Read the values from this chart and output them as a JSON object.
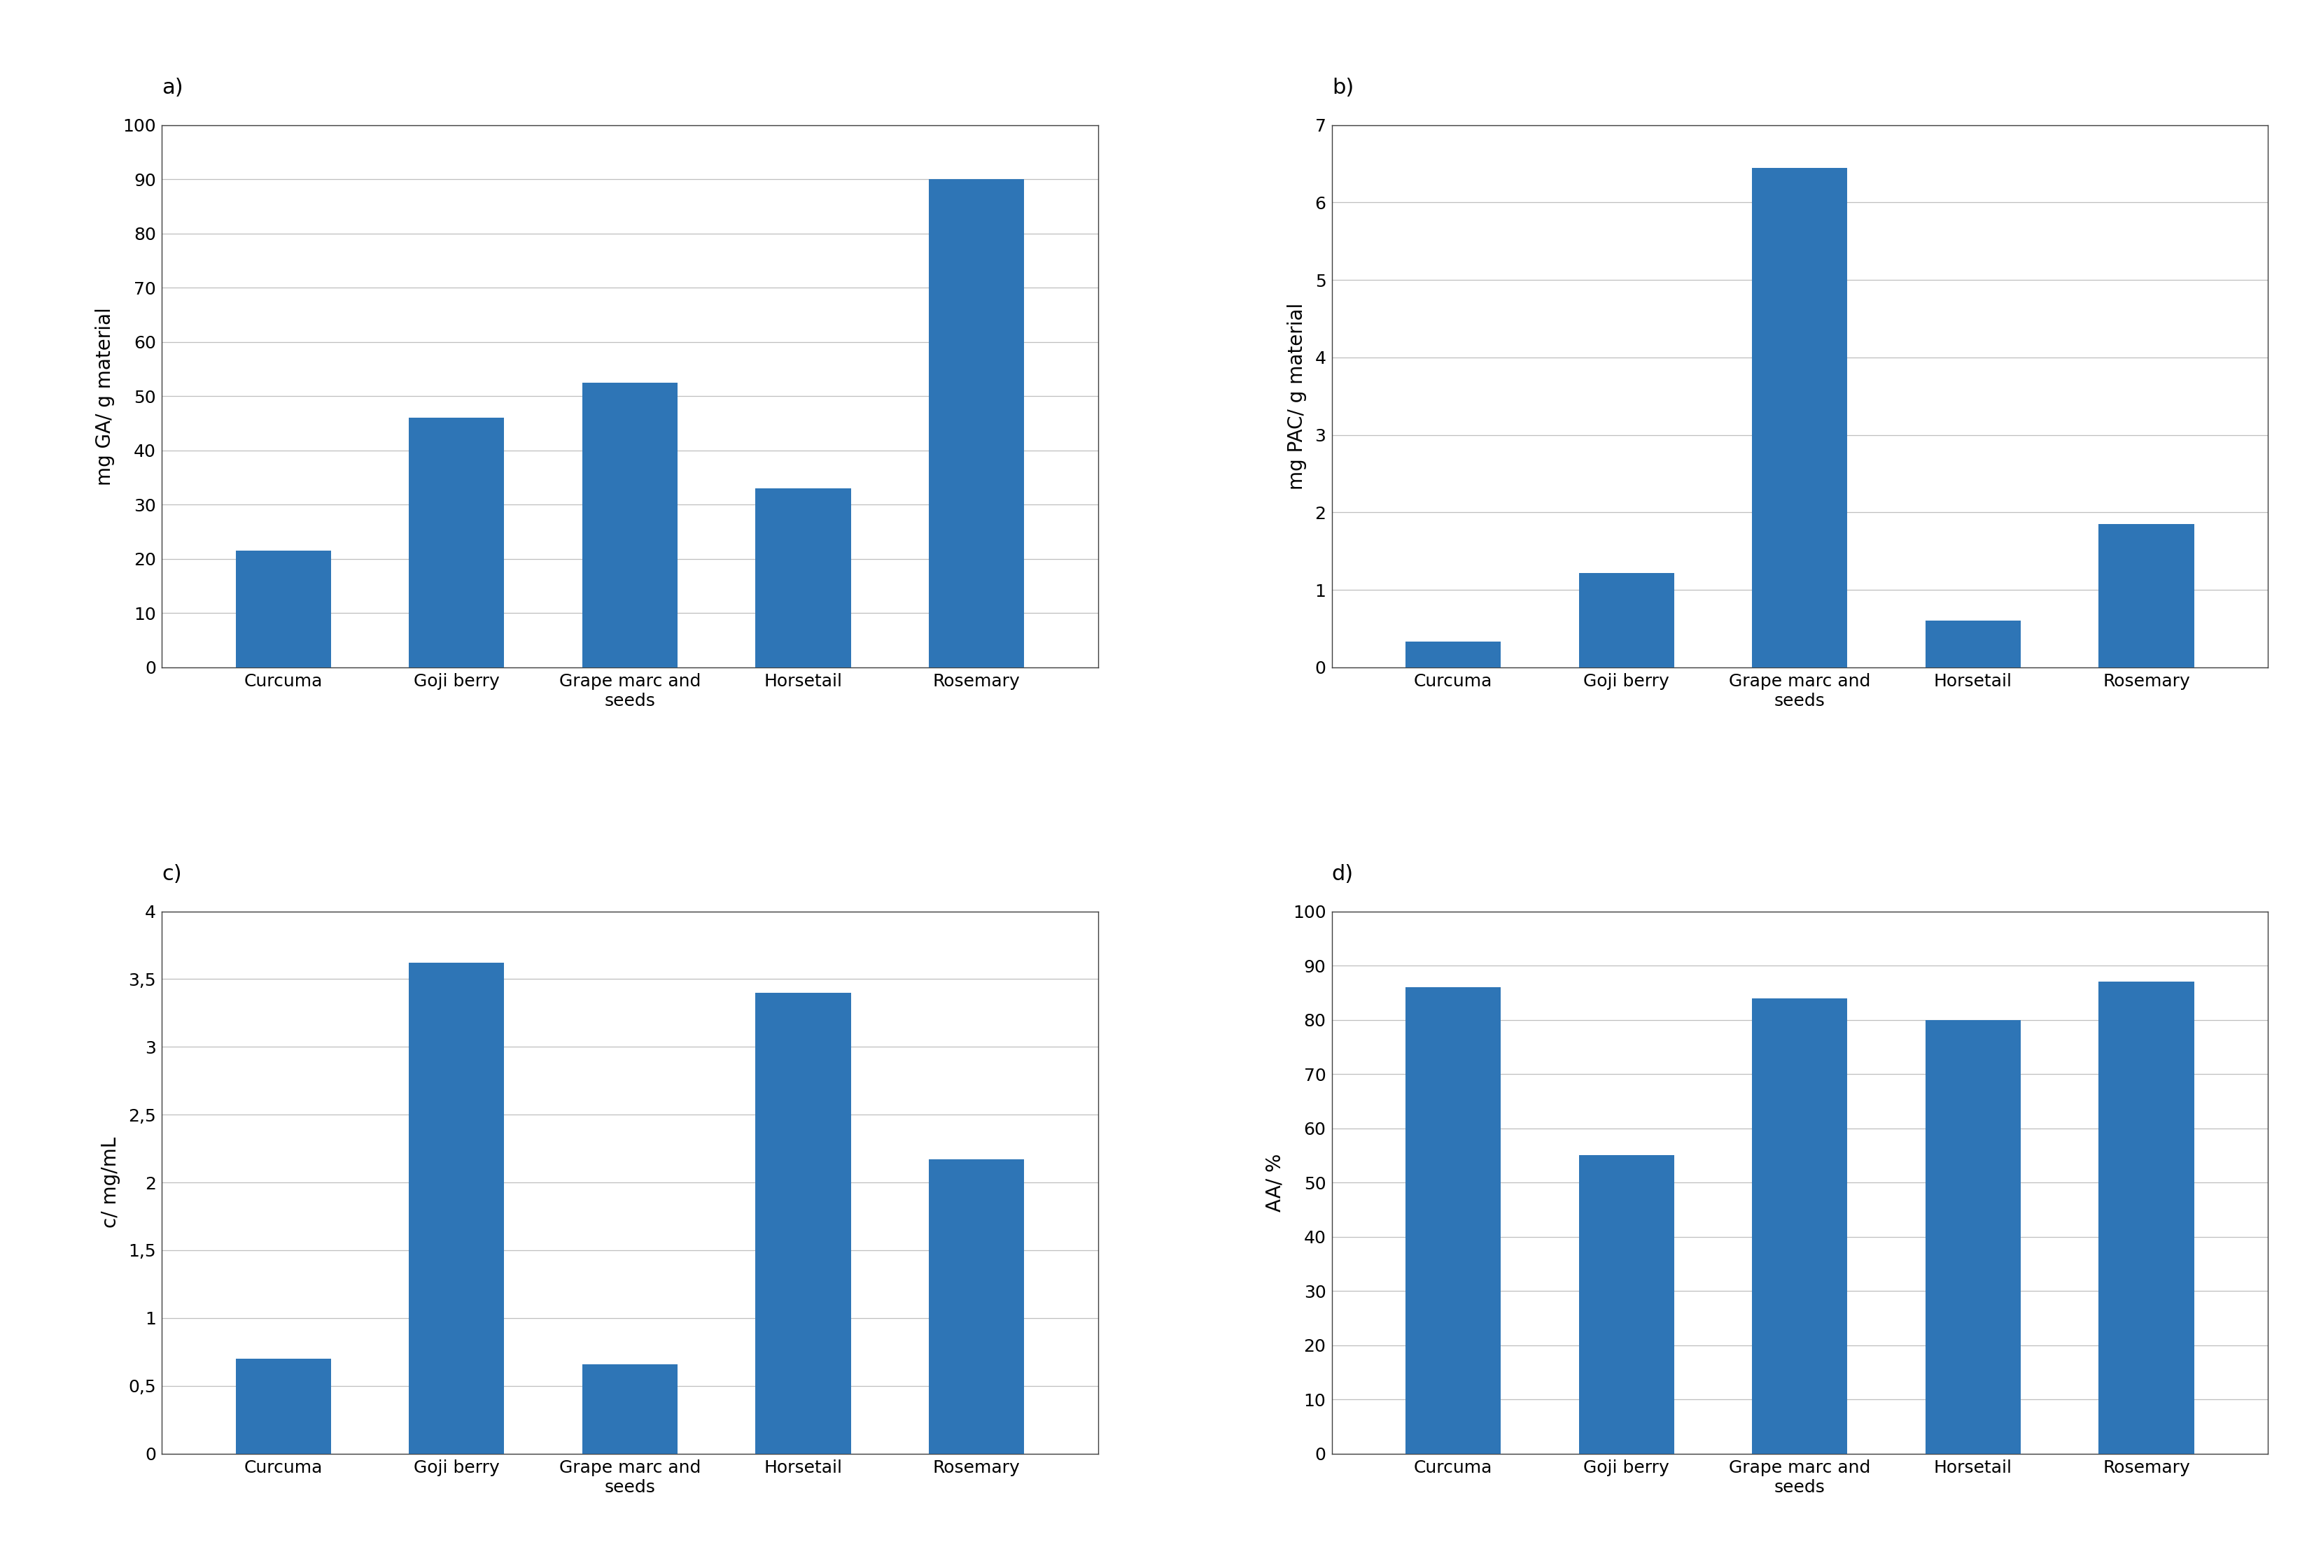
{
  "categories": [
    "Curcuma",
    "Goji berry",
    "Grape marc and\nseeds",
    "Horsetail",
    "Rosemary"
  ],
  "a_values": [
    21.5,
    46.0,
    52.5,
    33.0,
    90.0
  ],
  "a_ylabel": "mg GA/ g material",
  "a_ylim": [
    0,
    100
  ],
  "a_yticks": [
    0,
    10,
    20,
    30,
    40,
    50,
    60,
    70,
    80,
    90,
    100
  ],
  "b_values": [
    0.33,
    1.22,
    6.45,
    0.6,
    1.85
  ],
  "b_ylabel": "mg PAC/ g material",
  "b_ylim": [
    0,
    7
  ],
  "b_yticks": [
    0,
    1,
    2,
    3,
    4,
    5,
    6,
    7
  ],
  "c_values": [
    0.7,
    3.62,
    0.66,
    3.4,
    2.17
  ],
  "c_ylabel": "c/ mg/mL",
  "c_ylim": [
    0,
    4
  ],
  "c_yticks": [
    0,
    0.5,
    1.0,
    1.5,
    2.0,
    2.5,
    3.0,
    3.5,
    4.0
  ],
  "c_yticklabels": [
    "0",
    "0,5",
    "1",
    "1,5",
    "2",
    "2,5",
    "3",
    "3,5",
    "4"
  ],
  "d_values": [
    86.0,
    55.0,
    84.0,
    80.0,
    87.0
  ],
  "d_ylabel": "AA/ %",
  "d_ylim": [
    0,
    100
  ],
  "d_yticks": [
    0,
    10,
    20,
    30,
    40,
    50,
    60,
    70,
    80,
    90,
    100
  ],
  "bar_color": "#2E75B6",
  "grid_color": "#BFBFBF",
  "spine_color": "#404040",
  "label_fontsize": 20,
  "tick_fontsize": 18,
  "panel_label_fontsize": 22,
  "bar_width": 0.55
}
